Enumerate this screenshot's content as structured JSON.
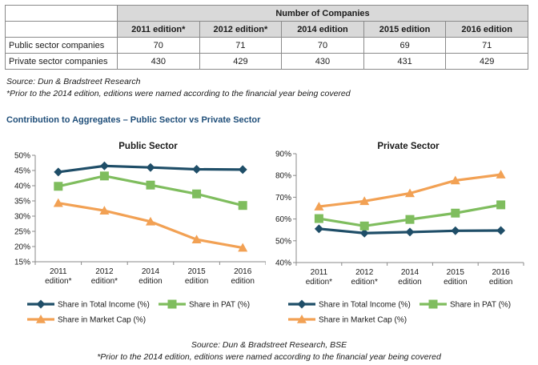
{
  "table": {
    "title": "Number of Companies",
    "columns": [
      "2011 edition*",
      "2012 edition*",
      "2014 edition",
      "2015 edition",
      "2016 edition"
    ],
    "rows": [
      {
        "label": "Public sector companies",
        "values": [
          "70",
          "71",
          "70",
          "69",
          "71"
        ]
      },
      {
        "label": "Private sector companies",
        "values": [
          "430",
          "429",
          "430",
          "431",
          "429"
        ]
      }
    ]
  },
  "notes": {
    "source": "Source: Dun & Bradstreet Research",
    "prior": "*Prior to the 2014 edition, editions were named according to the financial year being covered"
  },
  "section_title": "Contribution to Aggregates – Public Sector vs Private Sector",
  "footer": {
    "source": "Source: Dun & Bradstreet Research, BSE",
    "prior": "*Prior to the 2014 edition, editions were named according to the financial year being covered"
  },
  "colors": {
    "total_income": "#1f4e68",
    "pat": "#7fbd5e",
    "market_cap": "#f2a154"
  },
  "chart_data": [
    {
      "type": "line",
      "title": "Public Sector",
      "categories": [
        [
          "2011",
          "edition*"
        ],
        [
          "2012",
          "edition*"
        ],
        [
          "2014",
          "edition"
        ],
        [
          "2015",
          "edition"
        ],
        [
          "2016",
          "edition"
        ]
      ],
      "ylim": [
        15,
        50
      ],
      "yticks": [
        "15%",
        "20%",
        "25%",
        "30%",
        "35%",
        "40%",
        "45%",
        "50%"
      ],
      "series": [
        {
          "name": "Share in Total Income (%)",
          "marker": "diamond",
          "color": "#1f4e68",
          "values": [
            44.5,
            46.5,
            46.0,
            45.4,
            45.3
          ]
        },
        {
          "name": "Share in PAT (%)",
          "marker": "square",
          "color": "#7fbd5e",
          "values": [
            39.8,
            43.2,
            40.2,
            37.3,
            33.5
          ]
        },
        {
          "name": "Share in Market Cap (%)",
          "marker": "triangle",
          "color": "#f2a154",
          "values": [
            34.3,
            31.8,
            28.2,
            22.3,
            19.6
          ]
        }
      ]
    },
    {
      "type": "line",
      "title": "Private Sector",
      "categories": [
        [
          "2011",
          "edition*"
        ],
        [
          "2012",
          "edition*"
        ],
        [
          "2014",
          "edition"
        ],
        [
          "2015",
          "edition"
        ],
        [
          "2016",
          "edition"
        ]
      ],
      "ylim": [
        40,
        90
      ],
      "yticks": [
        "40%",
        "50%",
        "60%",
        "70%",
        "80%",
        "90%"
      ],
      "series": [
        {
          "name": "Share in Total Income (%)",
          "marker": "diamond",
          "color": "#1f4e68",
          "values": [
            55.5,
            53.5,
            54.0,
            54.6,
            54.7
          ]
        },
        {
          "name": "Share in PAT (%)",
          "marker": "square",
          "color": "#7fbd5e",
          "values": [
            60.2,
            56.8,
            59.8,
            62.7,
            66.5
          ]
        },
        {
          "name": "Share in Market Cap (%)",
          "marker": "triangle",
          "color": "#f2a154",
          "values": [
            65.7,
            68.2,
            71.8,
            77.7,
            80.4
          ]
        }
      ]
    }
  ]
}
